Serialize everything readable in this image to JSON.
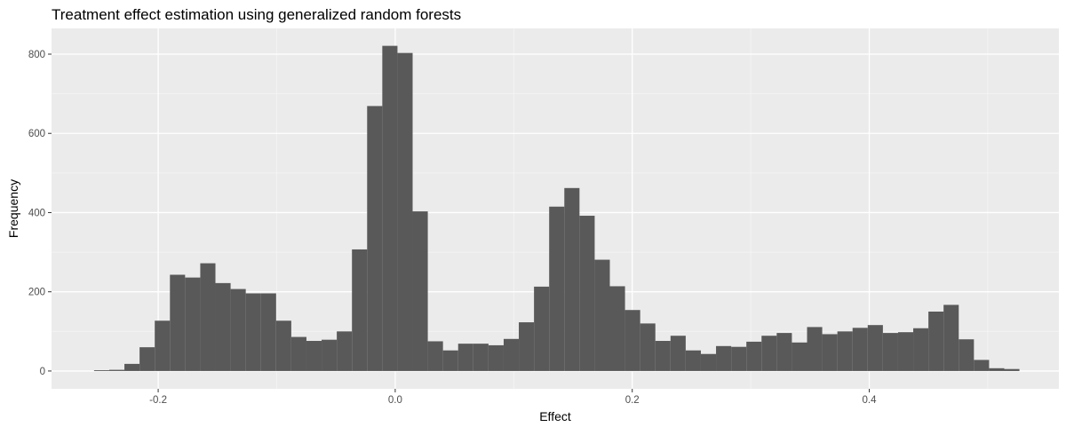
{
  "chart_data": {
    "type": "bar",
    "title": "Treatment effect estimation using generalized random forests",
    "xlabel": "Effect",
    "ylabel": "Frequency",
    "xlim": [
      -0.29,
      0.56
    ],
    "ylim": [
      -45,
      865
    ],
    "x_ticks": [
      -0.2,
      0.0,
      0.2,
      0.4
    ],
    "x_tick_labels": [
      "-0.2",
      "0.0",
      "0.2",
      "0.4"
    ],
    "y_ticks": [
      0,
      200,
      400,
      600,
      800
    ],
    "y_tick_labels": [
      "0",
      "200",
      "400",
      "600",
      "800"
    ],
    "bin_width": 0.0128,
    "bin_centers": [
      -0.2477,
      -0.2349,
      -0.2221,
      -0.2093,
      -0.1965,
      -0.1837,
      -0.1709,
      -0.1581,
      -0.1453,
      -0.1325,
      -0.1197,
      -0.1069,
      -0.0941,
      -0.0813,
      -0.0685,
      -0.0557,
      -0.0429,
      -0.0301,
      -0.0173,
      -0.0045,
      0.0083,
      0.0211,
      0.0339,
      0.0467,
      0.0595,
      0.0723,
      0.0851,
      0.0979,
      0.1107,
      0.1235,
      0.1363,
      0.1491,
      0.1619,
      0.1747,
      0.1875,
      0.2003,
      0.2131,
      0.2259,
      0.2387,
      0.2515,
      0.2643,
      0.2771,
      0.2899,
      0.3027,
      0.3155,
      0.3283,
      0.3411,
      0.3539,
      0.3667,
      0.3795,
      0.3923,
      0.4051,
      0.4179,
      0.4307,
      0.4435,
      0.4563,
      0.4691,
      0.4819,
      0.4947,
      0.5075,
      0.5203
    ],
    "values": [
      2,
      3,
      18,
      60,
      127,
      243,
      236,
      272,
      222,
      207,
      196,
      196,
      127,
      86,
      76,
      79,
      100,
      307,
      669,
      821,
      803,
      403,
      75,
      52,
      69,
      69,
      65,
      81,
      123,
      213,
      415,
      462,
      392,
      281,
      214,
      154,
      120,
      76,
      89,
      52,
      43,
      63,
      61,
      74,
      89,
      96,
      72,
      111,
      93,
      100,
      109,
      116,
      96,
      98,
      108,
      150,
      167,
      80,
      28,
      7,
      5
    ],
    "bar_color": "#595959",
    "panel_background": "#ebebeb",
    "grid": true,
    "legend": "none"
  }
}
